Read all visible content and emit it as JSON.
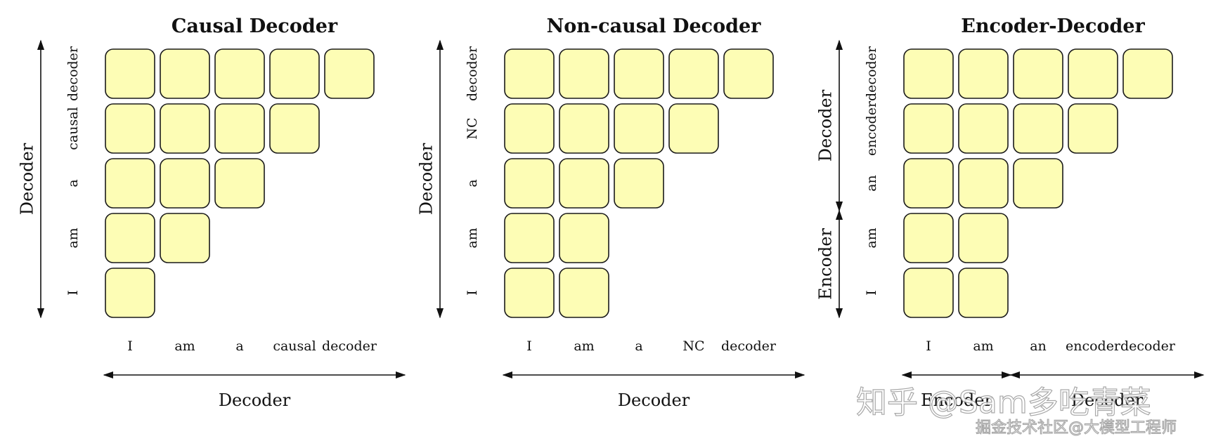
{
  "panels": [
    {
      "title": "Causal Decoder",
      "row_tokens": [
        "decoder",
        "causal",
        "a",
        "am",
        "I"
      ],
      "col_tokens": [
        "I",
        "am",
        "a",
        "causal",
        "decoder"
      ],
      "row_filled_counts": [
        5,
        4,
        3,
        2,
        1
      ],
      "row_axis_labels": [
        {
          "text": "Decoder",
          "span": [
            0,
            5
          ]
        }
      ],
      "col_axis_labels": [
        {
          "text": "Decoder",
          "span": [
            0,
            5
          ]
        }
      ]
    },
    {
      "title": "Non-causal Decoder",
      "row_tokens": [
        "decoder",
        "NC",
        "a",
        "am",
        "I"
      ],
      "col_tokens": [
        "I",
        "am",
        "a",
        "NC",
        "decoder"
      ],
      "row_filled_counts": [
        5,
        4,
        3,
        2,
        2
      ],
      "row_axis_labels": [
        {
          "text": "Decoder",
          "span": [
            0,
            5
          ]
        }
      ],
      "col_axis_labels": [
        {
          "text": "Decoder",
          "span": [
            0,
            5
          ]
        }
      ]
    },
    {
      "title": "Encoder-Decoder",
      "row_tokens": [
        "decoder",
        "encoder",
        "an",
        "am",
        "I"
      ],
      "col_tokens": [
        "I",
        "am",
        "an",
        "encoder",
        "decoder"
      ],
      "row_filled_counts": [
        5,
        4,
        3,
        2,
        2
      ],
      "row_axis_labels": [
        {
          "text": "Decoder",
          "span": [
            0,
            3
          ]
        },
        {
          "text": "Encoder",
          "span": [
            3,
            5
          ]
        }
      ],
      "col_axis_labels": [
        {
          "text": "Encoder",
          "span": [
            0,
            2
          ]
        },
        {
          "text": "Decoder",
          "span": [
            2,
            5
          ]
        }
      ]
    }
  ],
  "watermark": {
    "line1": "知乎 @Sam多吃青菜",
    "line2": "掘金技术社区@大模型工程师"
  }
}
